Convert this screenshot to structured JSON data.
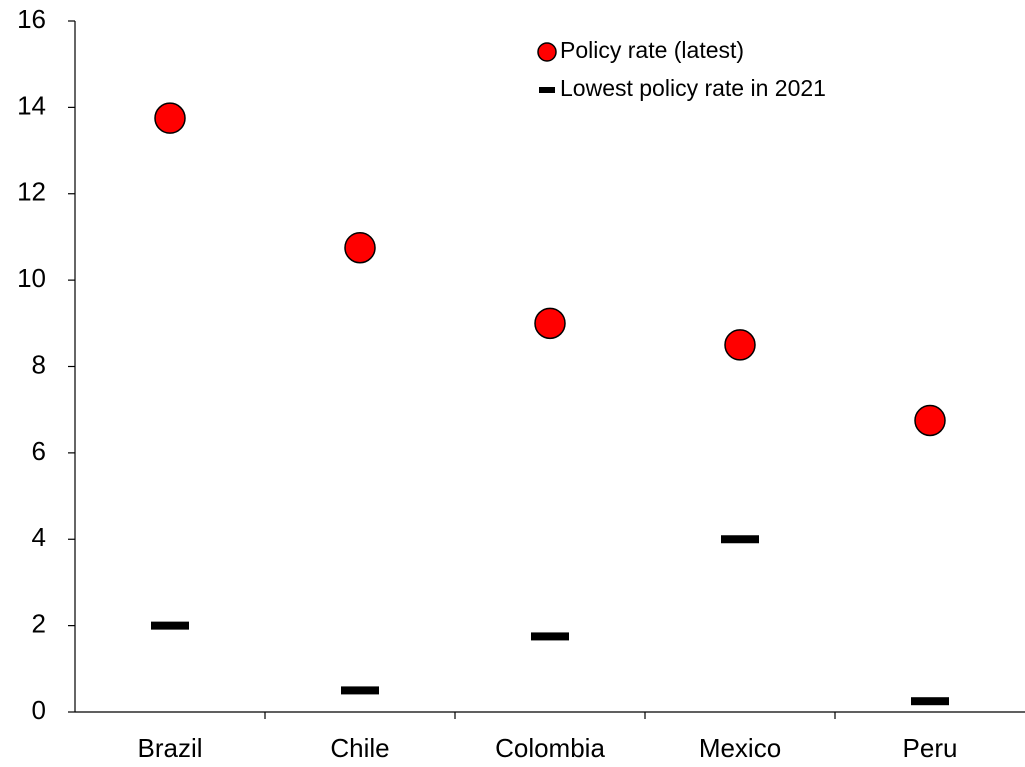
{
  "chart_data": {
    "type": "dot",
    "categories": [
      "Brazil",
      "Chile",
      "Colombia",
      "Mexico",
      "Peru"
    ],
    "series": [
      {
        "name": "Policy rate (latest)",
        "color": "#ff0000",
        "marker": "circle",
        "values": [
          13.75,
          10.75,
          9.0,
          8.5,
          6.75
        ]
      },
      {
        "name": "Lowest policy rate in 2021",
        "color": "#000000",
        "marker": "dash",
        "values": [
          2.0,
          0.5,
          1.75,
          4.0,
          0.25
        ]
      }
    ],
    "ylim": [
      0,
      16
    ],
    "yticks": [
      0,
      2,
      4,
      6,
      8,
      10,
      12,
      14,
      16
    ],
    "legend": "top-right"
  }
}
